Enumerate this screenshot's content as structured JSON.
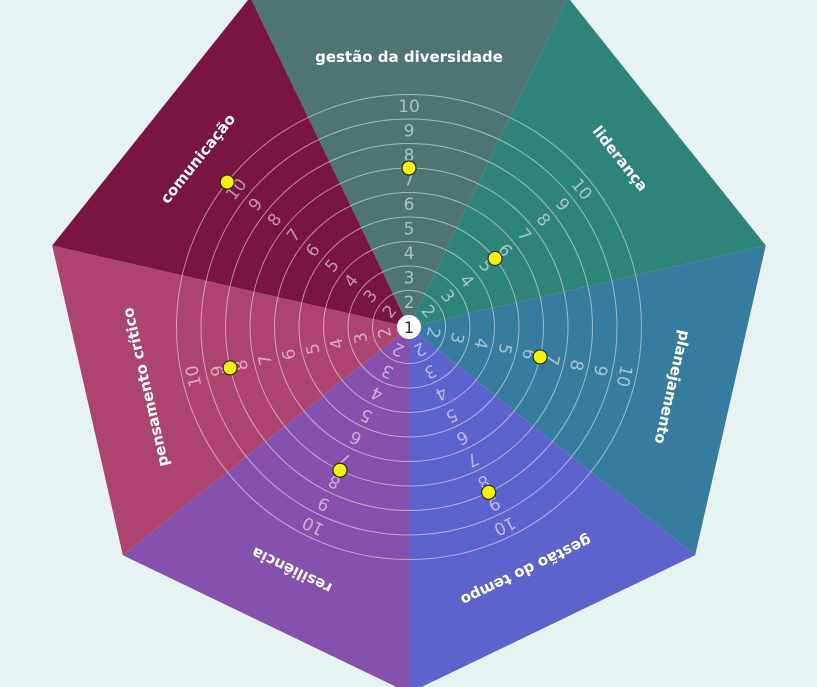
{
  "chart_data": {
    "type": "radial",
    "center_label": "1",
    "scale_labels": [
      "2",
      "3",
      "4",
      "5",
      "6",
      "7",
      "8",
      "9",
      "10"
    ],
    "categories": [
      "gestão da diversidade",
      "liderança",
      "planejamento",
      "gestão do tempo",
      "resiliência",
      "pensamento crítico",
      "comunicação"
    ],
    "values": [
      7,
      5,
      6,
      8,
      7,
      8,
      10
    ],
    "range": [
      1,
      10
    ],
    "colors": [
      "#4f7572",
      "#2f8379",
      "#377c9f",
      "#5e62cc",
      "#8551ad",
      "#ad436f",
      "#781540"
    ],
    "point_color": "#f4f10b",
    "background": "#e7f3f3"
  }
}
